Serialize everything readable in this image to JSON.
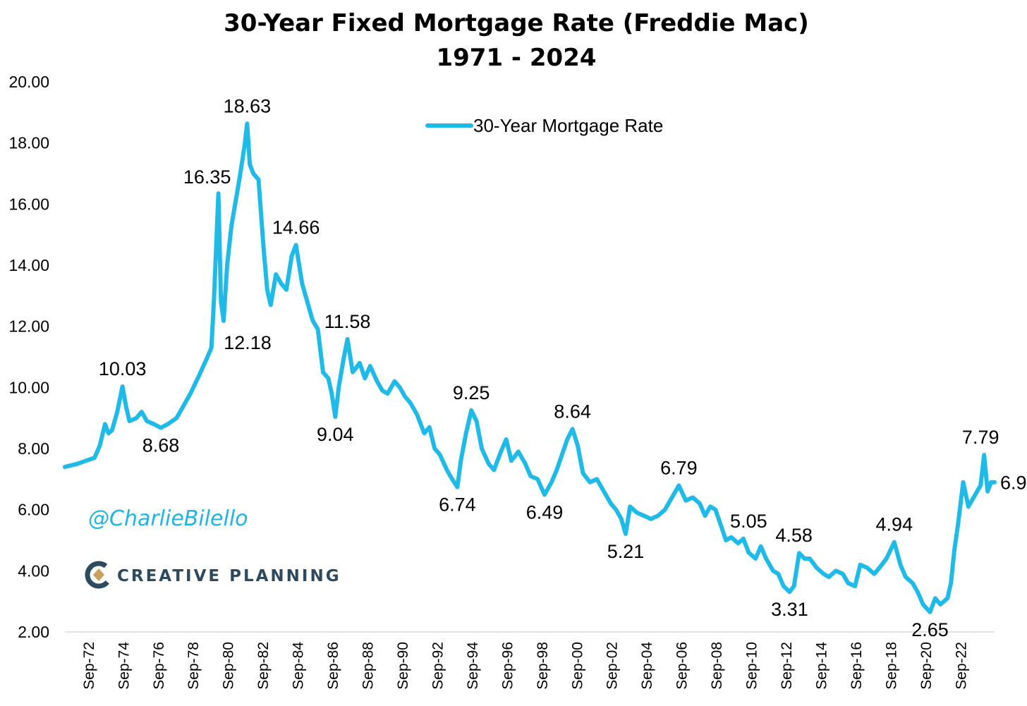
{
  "colors": {
    "series": "#1fbbe8",
    "brand": "#2e4a5f",
    "brand_accent": "#c9a15a",
    "watermark": "#1fb4e3"
  },
  "watermark": "@CharlieBilello",
  "brand": {
    "name": "CREATIVE PLANNING",
    "icon": "creative-planning-logo-icon"
  },
  "chart_data": {
    "type": "line",
    "title": "30-Year Fixed Mortgage Rate (Freddie Mac)",
    "subtitle": "1971 - 2024",
    "xlabel": "",
    "ylabel": "",
    "ylim": [
      2,
      20
    ],
    "xlim": [
      1971.3,
      2024.6
    ],
    "yticks": [
      "2.00",
      "4.00",
      "6.00",
      "8.00",
      "10.00",
      "12.00",
      "14.00",
      "16.00",
      "18.00",
      "20.00"
    ],
    "xticks": [
      "Sep-72",
      "Sep-74",
      "Sep-76",
      "Sep-78",
      "Sep-80",
      "Sep-82",
      "Sep-84",
      "Sep-86",
      "Sep-88",
      "Sep-90",
      "Sep-92",
      "Sep-94",
      "Sep-96",
      "Sep-98",
      "Sep-00",
      "Sep-02",
      "Sep-04",
      "Sep-06",
      "Sep-08",
      "Sep-10",
      "Sep-12",
      "Sep-14",
      "Sep-16",
      "Sep-18",
      "Sep-20",
      "Sep-22"
    ],
    "xtick_values": [
      1972.67,
      1974.67,
      1976.67,
      1978.67,
      1980.67,
      1982.67,
      1984.67,
      1986.67,
      1988.67,
      1990.67,
      1992.67,
      1994.67,
      1996.67,
      1998.67,
      2000.67,
      2002.67,
      2004.67,
      2006.67,
      2008.67,
      2010.67,
      2012.67,
      2014.67,
      2016.67,
      2018.67,
      2020.67,
      2022.67
    ],
    "grid": false,
    "legend_position": "top-center",
    "series": [
      {
        "name": "30-Year Mortgage Rate",
        "x": [
          1971.3,
          1972.0,
          1972.5,
          1973.0,
          1973.3,
          1973.6,
          1973.8,
          1974.0,
          1974.3,
          1974.6,
          1974.8,
          1975.0,
          1975.4,
          1975.7,
          1976.0,
          1976.4,
          1976.8,
          1977.2,
          1977.7,
          1978.0,
          1978.5,
          1979.0,
          1979.4,
          1979.7,
          1979.85,
          1980.1,
          1980.25,
          1980.4,
          1980.6,
          1980.85,
          1981.0,
          1981.3,
          1981.6,
          1981.75,
          1981.9,
          1982.1,
          1982.4,
          1982.7,
          1982.9,
          1983.1,
          1983.4,
          1983.7,
          1984.0,
          1984.3,
          1984.55,
          1984.9,
          1985.2,
          1985.5,
          1985.8,
          1986.1,
          1986.4,
          1986.6,
          1986.8,
          1987.0,
          1987.3,
          1987.5,
          1987.8,
          1988.2,
          1988.5,
          1988.8,
          1989.2,
          1989.5,
          1989.8,
          1990.2,
          1990.5,
          1990.8,
          1991.1,
          1991.5,
          1991.9,
          1992.2,
          1992.5,
          1992.8,
          1993.2,
          1993.5,
          1993.8,
          1994.0,
          1994.3,
          1994.6,
          1994.9,
          1995.2,
          1995.6,
          1995.9,
          1996.3,
          1996.6,
          1996.9,
          1997.3,
          1997.7,
          1998.0,
          1998.4,
          1998.8,
          1999.2,
          1999.5,
          1999.8,
          2000.1,
          2000.4,
          2000.7,
          2001.0,
          2001.4,
          2001.8,
          2002.2,
          2002.6,
          2002.9,
          2003.2,
          2003.45,
          2003.7,
          2004.1,
          2004.5,
          2004.9,
          2005.3,
          2005.7,
          2006.0,
          2006.5,
          2006.9,
          2007.3,
          2007.7,
          2008.0,
          2008.3,
          2008.6,
          2008.9,
          2009.2,
          2009.5,
          2009.9,
          2010.2,
          2010.5,
          2010.9,
          2011.2,
          2011.5,
          2011.9,
          2012.2,
          2012.5,
          2012.85,
          2013.1,
          2013.4,
          2013.7,
          2014.0,
          2014.4,
          2014.8,
          2015.1,
          2015.5,
          2015.9,
          2016.2,
          2016.6,
          2016.9,
          2017.3,
          2017.7,
          2018.0,
          2018.4,
          2018.85,
          2019.2,
          2019.5,
          2019.9,
          2020.2,
          2020.5,
          2020.9,
          2021.2,
          2021.5,
          2021.9,
          2022.1,
          2022.3,
          2022.5,
          2022.8,
          2023.1,
          2023.5,
          2023.8,
          2024.0,
          2024.2,
          2024.4,
          2024.6
        ],
        "values": [
          7.4,
          7.5,
          7.6,
          7.7,
          8.1,
          8.8,
          8.5,
          8.6,
          9.2,
          10.03,
          9.4,
          8.9,
          9.0,
          9.2,
          8.9,
          8.8,
          8.68,
          8.8,
          9.0,
          9.3,
          9.8,
          10.4,
          10.9,
          11.3,
          12.9,
          16.35,
          12.8,
          12.18,
          14.0,
          15.3,
          15.8,
          16.8,
          17.9,
          18.63,
          17.3,
          17.0,
          16.8,
          14.5,
          13.2,
          12.7,
          13.7,
          13.4,
          13.2,
          14.3,
          14.66,
          13.4,
          12.8,
          12.2,
          11.9,
          10.5,
          10.3,
          9.8,
          9.04,
          10.0,
          11.0,
          11.58,
          10.5,
          10.8,
          10.3,
          10.7,
          10.2,
          9.9,
          9.8,
          10.2,
          10.0,
          9.7,
          9.5,
          9.1,
          8.5,
          8.7,
          8.0,
          7.8,
          7.3,
          7.0,
          6.74,
          7.6,
          8.5,
          9.25,
          8.9,
          8.0,
          7.5,
          7.3,
          7.9,
          8.3,
          7.6,
          7.9,
          7.5,
          7.1,
          7.0,
          6.49,
          6.9,
          7.3,
          7.8,
          8.3,
          8.64,
          8.1,
          7.2,
          6.9,
          7.0,
          6.6,
          6.2,
          6.0,
          5.7,
          5.21,
          6.1,
          5.9,
          5.8,
          5.7,
          5.8,
          6.0,
          6.3,
          6.79,
          6.3,
          6.4,
          6.2,
          5.8,
          6.1,
          6.0,
          5.5,
          5.0,
          5.1,
          4.9,
          5.05,
          4.6,
          4.4,
          4.8,
          4.4,
          4.0,
          3.9,
          3.5,
          3.31,
          3.5,
          4.58,
          4.4,
          4.4,
          4.1,
          3.9,
          3.8,
          4.0,
          3.9,
          3.6,
          3.5,
          4.2,
          4.1,
          3.9,
          4.1,
          4.4,
          4.94,
          4.2,
          3.8,
          3.6,
          3.3,
          2.9,
          2.65,
          3.1,
          2.9,
          3.1,
          3.6,
          4.7,
          5.5,
          6.9,
          6.1,
          6.5,
          6.8,
          7.79,
          6.6,
          6.9,
          6.9
        ]
      }
    ],
    "annotations": [
      {
        "label": "10.03",
        "x": 1974.6,
        "y": 10.03,
        "pos": "above"
      },
      {
        "label": "8.68",
        "x": 1976.8,
        "y": 8.68,
        "pos": "below"
      },
      {
        "label": "16.35",
        "x": 1980.1,
        "y": 16.35,
        "pos": "above-left"
      },
      {
        "label": "12.18",
        "x": 1980.4,
        "y": 12.18,
        "pos": "below-right"
      },
      {
        "label": "18.63",
        "x": 1981.75,
        "y": 18.63,
        "pos": "above"
      },
      {
        "label": "14.66",
        "x": 1984.55,
        "y": 14.66,
        "pos": "above"
      },
      {
        "label": "9.04",
        "x": 1986.8,
        "y": 9.04,
        "pos": "below"
      },
      {
        "label": "11.58",
        "x": 1987.5,
        "y": 11.58,
        "pos": "above"
      },
      {
        "label": "6.74",
        "x": 1993.8,
        "y": 6.74,
        "pos": "below"
      },
      {
        "label": "9.25",
        "x": 1994.6,
        "y": 9.25,
        "pos": "above"
      },
      {
        "label": "6.49",
        "x": 1998.8,
        "y": 6.49,
        "pos": "below"
      },
      {
        "label": "8.64",
        "x": 2000.4,
        "y": 8.64,
        "pos": "above"
      },
      {
        "label": "5.21",
        "x": 2003.45,
        "y": 5.21,
        "pos": "below"
      },
      {
        "label": "6.79",
        "x": 2006.5,
        "y": 6.79,
        "pos": "above"
      },
      {
        "label": "5.05",
        "x": 2010.5,
        "y": 5.05,
        "pos": "above"
      },
      {
        "label": "3.31",
        "x": 2012.85,
        "y": 3.31,
        "pos": "below"
      },
      {
        "label": "4.58",
        "x": 2013.1,
        "y": 4.58,
        "pos": "above"
      },
      {
        "label": "4.94",
        "x": 2018.85,
        "y": 4.94,
        "pos": "above"
      },
      {
        "label": "2.65",
        "x": 2020.9,
        "y": 2.65,
        "pos": "below"
      },
      {
        "label": "7.79",
        "x": 2023.8,
        "y": 7.79,
        "pos": "above"
      },
      {
        "label": "6.9",
        "x": 2024.6,
        "y": 6.9,
        "pos": "right"
      }
    ]
  }
}
